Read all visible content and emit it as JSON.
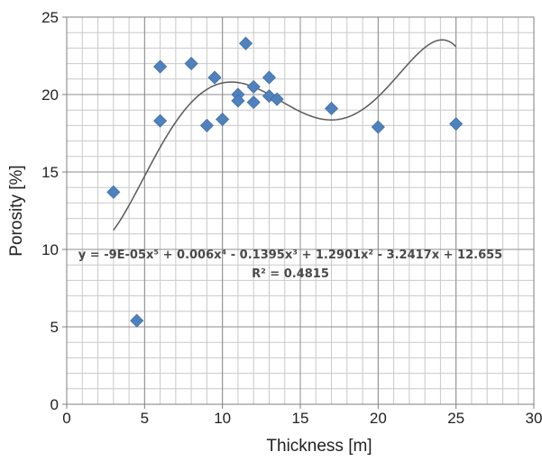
{
  "chart_data": {
    "type": "scatter",
    "title": "",
    "xlabel": "Thickness [m]",
    "ylabel": "Porosity [%]",
    "xlim": [
      0,
      30
    ],
    "ylim": [
      0,
      25
    ],
    "x_ticks": [
      0,
      5,
      10,
      15,
      20,
      25,
      30
    ],
    "y_ticks": [
      0,
      5,
      10,
      15,
      20,
      25
    ],
    "x_tick_labels": [
      "0",
      "5",
      "10",
      "15",
      "20",
      "25",
      "30"
    ],
    "y_tick_labels": [
      "0",
      "5",
      "10",
      "15",
      "20",
      "25"
    ],
    "grid": true,
    "minor_grid_step": 1,
    "marker_color": "#4f81bd",
    "trendline_color": "#595959",
    "series": [
      {
        "marker": "diamond",
        "points": [
          {
            "x": 3,
            "y": 13.7
          },
          {
            "x": 4.5,
            "y": 5.4
          },
          {
            "x": 6,
            "y": 21.8
          },
          {
            "x": 6,
            "y": 18.3
          },
          {
            "x": 8,
            "y": 22.0
          },
          {
            "x": 9,
            "y": 18.0
          },
          {
            "x": 9.5,
            "y": 21.1
          },
          {
            "x": 10,
            "y": 18.4
          },
          {
            "x": 11,
            "y": 20.0
          },
          {
            "x": 11,
            "y": 19.6
          },
          {
            "x": 11.5,
            "y": 23.3
          },
          {
            "x": 12,
            "y": 20.5
          },
          {
            "x": 12,
            "y": 19.5
          },
          {
            "x": 13,
            "y": 21.1
          },
          {
            "x": 13,
            "y": 19.9
          },
          {
            "x": 13.5,
            "y": 19.7
          },
          {
            "x": 17,
            "y": 19.1
          },
          {
            "x": 20,
            "y": 17.9
          },
          {
            "x": 25,
            "y": 18.1
          }
        ]
      }
    ],
    "trendline": {
      "type": "polynomial",
      "order": 5,
      "coefficients": [
        12.655,
        -3.2417,
        1.2901,
        -0.1395,
        0.006,
        -9e-05
      ],
      "x_range": [
        3,
        25
      ],
      "equation": "y = -9E-05x⁵ + 0.006x⁴ - 0.1395x³ + 1.2901x² - 3.2417x + 12.655",
      "r_squared": "R² = 0.4815"
    }
  }
}
